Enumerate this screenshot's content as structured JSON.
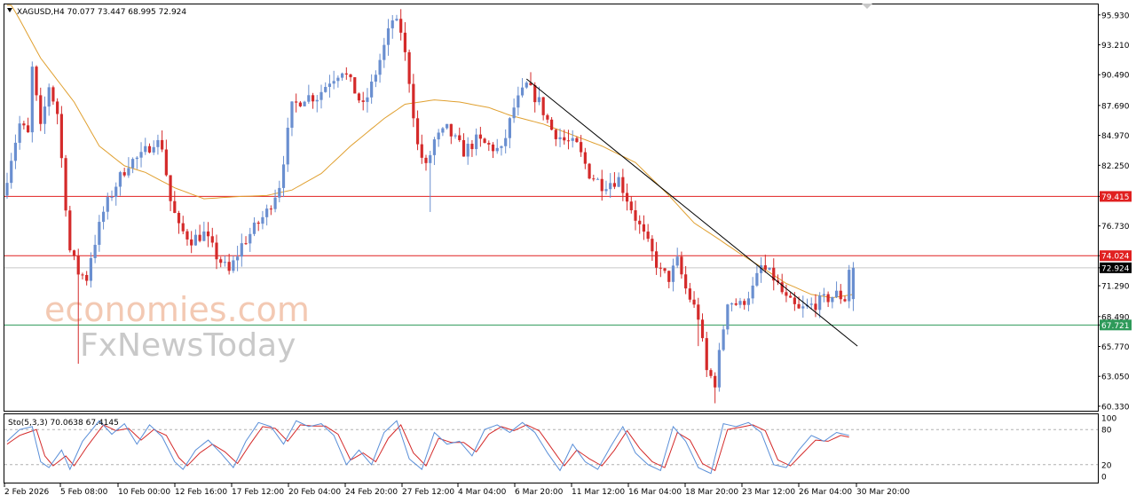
{
  "header": {
    "symbol_line": "XAGUSD,H4  70.077 73.447 68.995 72.924",
    "stoch_line": "Sto(5,3,3) 70.0638 67.4145"
  },
  "watermark": {
    "line1": "economies.com",
    "line2": "FxNewsToday"
  },
  "colors": {
    "bull": "#6a8fd0",
    "bear": "#d42a2a",
    "ma": "#e0a030",
    "resistance": "#e02020",
    "support": "#2e9a5a",
    "trendline": "#000000",
    "stoch_main": "#5a8fd8",
    "stoch_signal": "#d42a2a"
  },
  "chart_data": {
    "type": "candlestick",
    "symbol": "XAGUSD",
    "timeframe": "H4",
    "ohlc_last": {
      "open": 70.077,
      "high": 73.447,
      "low": 68.995,
      "close": 72.924
    },
    "price_axis_ticks": [
      "95.930",
      "93.210",
      "90.490",
      "87.690",
      "84.970",
      "82.250",
      "79.415",
      "76.730",
      "74.024",
      "72.924",
      "71.290",
      "68.490",
      "67.721",
      "65.770",
      "63.050",
      "60.330"
    ],
    "ylim": [
      60.0,
      96.8
    ],
    "time_axis_ticks": [
      "2 Feb 2026",
      "5 Feb 08:00",
      "10 Feb 00:00",
      "12 Feb 16:00",
      "17 Feb 12:00",
      "20 Feb 04:00",
      "24 Feb 20:00",
      "27 Feb 12:00",
      "4 Mar 04:00",
      "6 Mar 20:00",
      "11 Mar 12:00",
      "16 Mar 04:00",
      "18 Mar 20:00",
      "23 Mar 12:00",
      "26 Mar 04:00",
      "30 Mar 20:00"
    ],
    "levels": [
      {
        "value": 79.415,
        "label": "79.415",
        "role": "resistance"
      },
      {
        "value": 74.024,
        "label": "74.024",
        "role": "resistance"
      },
      {
        "value": 67.721,
        "label": "67.721",
        "role": "support"
      },
      {
        "value": 72.924,
        "label": "72.924",
        "role": "current"
      }
    ],
    "trendline": {
      "from_bar": 124,
      "from_price": 90.1,
      "to_bar": 203,
      "to_price": 65.8
    },
    "price_anchors": [
      [
        0,
        79.5
      ],
      [
        2,
        83.0
      ],
      [
        4,
        86.0
      ],
      [
        6,
        85.0
      ],
      [
        7,
        91.0
      ],
      [
        9,
        85.5
      ],
      [
        11,
        89.5
      ],
      [
        13,
        87.0
      ],
      [
        16,
        74.5
      ],
      [
        18,
        72.5
      ],
      [
        20,
        72.0
      ],
      [
        21,
        74.0
      ],
      [
        24,
        78.0
      ],
      [
        27,
        80.5
      ],
      [
        30,
        82.5
      ],
      [
        33,
        83.0
      ],
      [
        36,
        84.5
      ],
      [
        38,
        84.0
      ],
      [
        40,
        79.0
      ],
      [
        42,
        76.5
      ],
      [
        45,
        75.5
      ],
      [
        48,
        76.0
      ],
      [
        51,
        74.0
      ],
      [
        54,
        72.5
      ],
      [
        57,
        75.0
      ],
      [
        60,
        76.5
      ],
      [
        63,
        78.0
      ],
      [
        66,
        80.5
      ],
      [
        69,
        87.5
      ],
      [
        72,
        88.5
      ],
      [
        75,
        88.5
      ],
      [
        78,
        90.0
      ],
      [
        81,
        91.0
      ],
      [
        84,
        89.0
      ],
      [
        86,
        87.5
      ],
      [
        88,
        89.5
      ],
      [
        91,
        93.0
      ],
      [
        93,
        95.5
      ],
      [
        95,
        94.5
      ],
      [
        97,
        90.0
      ],
      [
        99,
        84.0
      ],
      [
        101,
        82.0
      ],
      [
        103,
        84.5
      ],
      [
        106,
        85.5
      ],
      [
        110,
        83.5
      ],
      [
        113,
        84.5
      ],
      [
        116,
        84.0
      ],
      [
        119,
        83.5
      ],
      [
        122,
        87.5
      ],
      [
        125,
        89.5
      ],
      [
        128,
        88.0
      ],
      [
        131,
        85.5
      ],
      [
        134,
        84.5
      ],
      [
        137,
        84.0
      ],
      [
        140,
        81.5
      ],
      [
        143,
        80.5
      ],
      [
        147,
        81.0
      ],
      [
        151,
        77.5
      ],
      [
        154,
        75.0
      ],
      [
        157,
        72.5
      ],
      [
        159,
        72.0
      ],
      [
        161,
        73.5
      ],
      [
        163,
        71.0
      ],
      [
        166,
        68.5
      ],
      [
        168,
        63.5
      ],
      [
        170,
        62.5
      ],
      [
        173,
        70.0
      ],
      [
        176,
        69.5
      ],
      [
        179,
        71.0
      ],
      [
        181,
        73.0
      ],
      [
        184,
        72.0
      ],
      [
        187,
        70.0
      ],
      [
        190,
        69.0
      ],
      [
        193,
        69.5
      ],
      [
        196,
        70.0
      ],
      [
        199,
        70.5
      ],
      [
        201,
        70.1
      ],
      [
        202,
        72.9
      ]
    ],
    "ma_anchors": [
      [
        0,
        97.5
      ],
      [
        3,
        95.5
      ],
      [
        8,
        92.0
      ],
      [
        16,
        88.0
      ],
      [
        22,
        84.0
      ],
      [
        28,
        82.2
      ],
      [
        33,
        81.6
      ],
      [
        40,
        80.2
      ],
      [
        47,
        79.2
      ],
      [
        55,
        79.4
      ],
      [
        62,
        79.5
      ],
      [
        68,
        80.0
      ],
      [
        75,
        81.5
      ],
      [
        82,
        84.0
      ],
      [
        90,
        86.5
      ],
      [
        95,
        87.8
      ],
      [
        102,
        88.2
      ],
      [
        108,
        88.0
      ],
      [
        115,
        87.5
      ],
      [
        120,
        86.8
      ],
      [
        128,
        86.0
      ],
      [
        135,
        85.0
      ],
      [
        142,
        84.0
      ],
      [
        150,
        82.5
      ],
      [
        158,
        79.5
      ],
      [
        164,
        77.0
      ],
      [
        170,
        75.5
      ],
      [
        175,
        74.2
      ],
      [
        180,
        73.0
      ],
      [
        186,
        71.5
      ],
      [
        192,
        70.5
      ],
      [
        197,
        70.2
      ],
      [
        202,
        70.5
      ]
    ],
    "bar_count": 203,
    "stochastic": {
      "params": "5,3,3",
      "main_last": 70.0638,
      "signal_last": 67.4145,
      "levels": [
        80,
        20
      ],
      "axis_ticks": [
        "100",
        "80",
        "20",
        "0"
      ],
      "main_anchors": [
        [
          0,
          60
        ],
        [
          3,
          80
        ],
        [
          6,
          85
        ],
        [
          8,
          25
        ],
        [
          10,
          15
        ],
        [
          13,
          45
        ],
        [
          15,
          12
        ],
        [
          18,
          60
        ],
        [
          22,
          95
        ],
        [
          25,
          72
        ],
        [
          28,
          90
        ],
        [
          31,
          55
        ],
        [
          34,
          88
        ],
        [
          37,
          68
        ],
        [
          40,
          25
        ],
        [
          42,
          12
        ],
        [
          45,
          45
        ],
        [
          48,
          62
        ],
        [
          51,
          40
        ],
        [
          54,
          15
        ],
        [
          57,
          60
        ],
        [
          60,
          92
        ],
        [
          63,
          85
        ],
        [
          66,
          55
        ],
        [
          69,
          95
        ],
        [
          72,
          85
        ],
        [
          75,
          90
        ],
        [
          78,
          70
        ],
        [
          81,
          20
        ],
        [
          84,
          45
        ],
        [
          87,
          20
        ],
        [
          90,
          75
        ],
        [
          93,
          95
        ],
        [
          96,
          30
        ],
        [
          99,
          12
        ],
        [
          102,
          75
        ],
        [
          105,
          55
        ],
        [
          108,
          60
        ],
        [
          111,
          35
        ],
        [
          114,
          80
        ],
        [
          117,
          88
        ],
        [
          120,
          75
        ],
        [
          123,
          92
        ],
        [
          126,
          75
        ],
        [
          129,
          40
        ],
        [
          132,
          10
        ],
        [
          135,
          55
        ],
        [
          138,
          25
        ],
        [
          141,
          12
        ],
        [
          144,
          50
        ],
        [
          147,
          85
        ],
        [
          150,
          40
        ],
        [
          153,
          20
        ],
        [
          156,
          10
        ],
        [
          159,
          85
        ],
        [
          162,
          60
        ],
        [
          165,
          15
        ],
        [
          168,
          5
        ],
        [
          171,
          90
        ],
        [
          174,
          85
        ],
        [
          177,
          92
        ],
        [
          180,
          75
        ],
        [
          183,
          20
        ],
        [
          186,
          15
        ],
        [
          189,
          45
        ],
        [
          192,
          70
        ],
        [
          195,
          60
        ],
        [
          198,
          75
        ],
        [
          201,
          70
        ]
      ],
      "signal_anchors": [
        [
          0,
          55
        ],
        [
          3,
          70
        ],
        [
          7,
          80
        ],
        [
          9,
          35
        ],
        [
          11,
          18
        ],
        [
          14,
          35
        ],
        [
          16,
          18
        ],
        [
          19,
          50
        ],
        [
          23,
          88
        ],
        [
          26,
          78
        ],
        [
          29,
          82
        ],
        [
          32,
          62
        ],
        [
          35,
          80
        ],
        [
          38,
          70
        ],
        [
          41,
          32
        ],
        [
          43,
          18
        ],
        [
          46,
          40
        ],
        [
          49,
          55
        ],
        [
          52,
          42
        ],
        [
          55,
          22
        ],
        [
          58,
          55
        ],
        [
          61,
          85
        ],
        [
          64,
          82
        ],
        [
          67,
          60
        ],
        [
          70,
          88
        ],
        [
          73,
          86
        ],
        [
          76,
          86
        ],
        [
          79,
          72
        ],
        [
          82,
          28
        ],
        [
          85,
          40
        ],
        [
          88,
          25
        ],
        [
          91,
          65
        ],
        [
          94,
          88
        ],
        [
          97,
          40
        ],
        [
          100,
          18
        ],
        [
          103,
          65
        ],
        [
          106,
          58
        ],
        [
          109,
          58
        ],
        [
          112,
          42
        ],
        [
          115,
          72
        ],
        [
          118,
          85
        ],
        [
          121,
          78
        ],
        [
          124,
          88
        ],
        [
          127,
          78
        ],
        [
          130,
          48
        ],
        [
          133,
          18
        ],
        [
          136,
          45
        ],
        [
          139,
          30
        ],
        [
          142,
          18
        ],
        [
          145,
          45
        ],
        [
          148,
          78
        ],
        [
          151,
          48
        ],
        [
          154,
          25
        ],
        [
          157,
          15
        ],
        [
          160,
          75
        ],
        [
          163,
          62
        ],
        [
          166,
          22
        ],
        [
          169,
          10
        ],
        [
          172,
          80
        ],
        [
          175,
          84
        ],
        [
          178,
          88
        ],
        [
          181,
          78
        ],
        [
          184,
          28
        ],
        [
          187,
          18
        ],
        [
          190,
          40
        ],
        [
          193,
          62
        ],
        [
          196,
          60
        ],
        [
          199,
          70
        ],
        [
          201,
          67
        ]
      ]
    }
  }
}
